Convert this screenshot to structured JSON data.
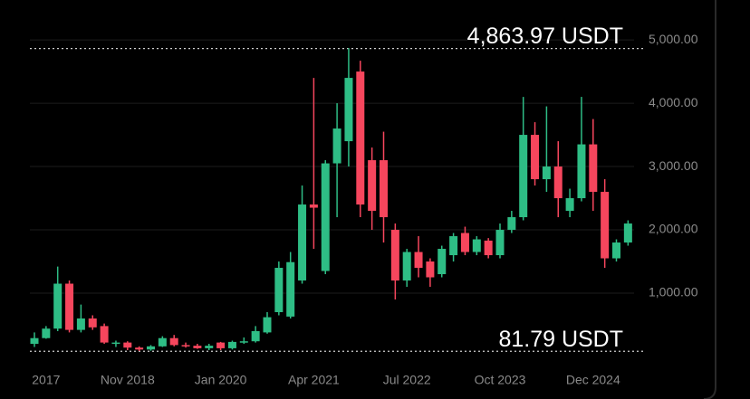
{
  "chart_data": {
    "type": "candlestick",
    "categories": [
      null,
      "2017",
      null,
      null,
      null,
      null,
      null,
      null,
      "Nov 2018",
      null,
      null,
      null,
      null,
      null,
      null,
      null,
      "Jan 2020",
      null,
      null,
      null,
      null,
      null,
      null,
      null,
      "Apr 2021",
      null,
      null,
      null,
      null,
      null,
      null,
      null,
      "Jul 2022",
      null,
      null,
      null,
      null,
      null,
      null,
      null,
      "Oct 2023",
      null,
      null,
      null,
      null,
      null,
      null,
      null,
      "Dec 2024",
      null,
      null,
      null
    ],
    "open": [
      200,
      290,
      440,
      1150,
      420,
      600,
      480,
      200,
      220,
      140,
      110,
      160,
      290,
      180,
      170,
      130,
      220,
      130,
      230,
      240,
      380,
      700,
      630,
      1200,
      2400,
      1350,
      3050,
      3400,
      4500,
      3100,
      3100,
      2000,
      1200,
      1650,
      1500,
      1300,
      1600,
      1950,
      1650,
      1830,
      1600,
      2000,
      2200,
      3500,
      2800,
      3000,
      2300,
      2500,
      3350,
      2600,
      1550,
      1800
    ],
    "high": [
      380,
      480,
      1420,
      1200,
      820,
      650,
      520,
      250,
      240,
      160,
      180,
      320,
      340,
      220,
      200,
      200,
      230,
      250,
      300,
      480,
      700,
      1500,
      1650,
      2700,
      4400,
      3100,
      4000,
      4870,
      4670,
      3300,
      3550,
      2100,
      1700,
      1900,
      1550,
      1750,
      1950,
      2050,
      1900,
      1870,
      2100,
      2300,
      4100,
      3700,
      3950,
      3400,
      2650,
      4100,
      3750,
      2800,
      1850,
      2150
    ],
    "low": [
      150,
      280,
      400,
      380,
      380,
      420,
      200,
      150,
      100,
      85,
      90,
      150,
      160,
      140,
      120,
      100,
      100,
      110,
      200,
      220,
      360,
      650,
      600,
      1150,
      1700,
      1300,
      2200,
      3000,
      2200,
      2000,
      1800,
      900,
      1100,
      1250,
      1100,
      1250,
      1500,
      1600,
      1600,
      1550,
      1550,
      1950,
      2150,
      2700,
      2600,
      2200,
      2200,
      2450,
      2300,
      1400,
      1500,
      1750
    ],
    "close": [
      290,
      440,
      1150,
      420,
      600,
      460,
      220,
      220,
      140,
      110,
      160,
      290,
      180,
      170,
      130,
      170,
      130,
      230,
      240,
      400,
      620,
      1400,
      1490,
      2400,
      2350,
      3050,
      3600,
      4400,
      2400,
      2300,
      2200,
      1200,
      1650,
      1400,
      1250,
      1700,
      1900,
      1650,
      1850,
      1600,
      2000,
      2200,
      3500,
      2800,
      3000,
      2500,
      2500,
      3350,
      2600,
      1550,
      1800,
      2100
    ],
    "up_color": "#2ebd85",
    "down_color": "#f6465d",
    "ylim": [
      0,
      5630
    ],
    "yticks": [
      {
        "value": 1000,
        "label": "1,000.00"
      },
      {
        "value": 2000,
        "label": "2,000.00"
      },
      {
        "value": 3000,
        "label": "3,000.00"
      },
      {
        "value": 4000,
        "label": "4,000.00"
      },
      {
        "value": 5000,
        "label": "5,000.00"
      }
    ],
    "grid": true,
    "high_marker": {
      "value": 4863.97,
      "label": "4,863.97 USDT"
    },
    "low_marker": {
      "value": 81.79,
      "label": "81.79 USDT"
    }
  }
}
